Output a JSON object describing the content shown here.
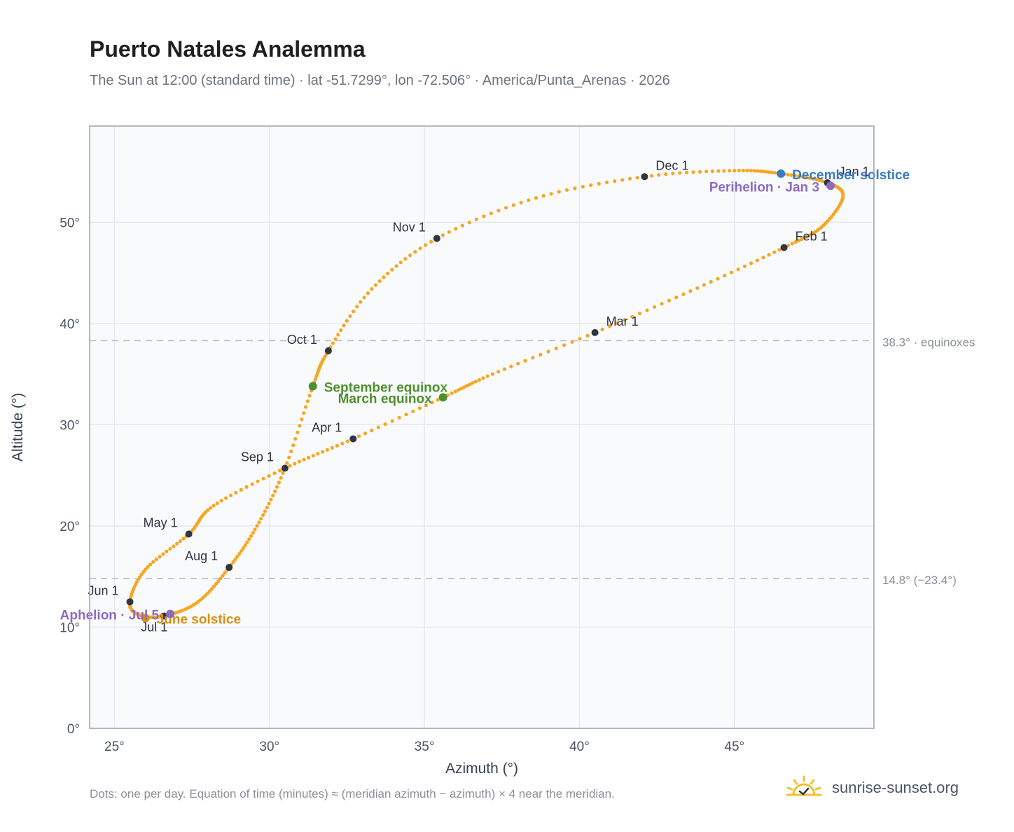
{
  "header": {
    "title": "Puerto Natales Analemma",
    "subtitle": "The Sun at 12:00 (standard time) · lat -51.7299°, lon -72.506° · America/Punta_Arenas · 2026"
  },
  "footer": {
    "note": "Dots: one per day. Equation of time (minutes) ≈ (meridian azimuth − azimuth) × 4 near the meridian.",
    "brand": "sunrise-sunset.org"
  },
  "colors": {
    "path": "#f5a623",
    "month_marker": "#2f3640",
    "december_solstice": "#3a7abf",
    "june_solstice": "#d9900f",
    "equinox": "#4f8f2f",
    "apsis": "#8e6bbf",
    "reference_line": "#b9c0ca",
    "plot_bg": "#f8fafc",
    "grid": "#e3e8ee"
  },
  "chart_data": {
    "type": "scatter",
    "xlabel": "Azimuth (°)",
    "ylabel": "Altitude (°)",
    "xlim": [
      24.2,
      49.5
    ],
    "ylim": [
      0,
      59.5
    ],
    "x_ticks": [
      25,
      30,
      35,
      40,
      45
    ],
    "x_tick_labels": [
      "25°",
      "30°",
      "35°",
      "40°",
      "45°"
    ],
    "y_ticks": [
      0,
      10,
      20,
      30,
      40,
      50
    ],
    "y_tick_labels": [
      "0°",
      "10°",
      "20°",
      "30°",
      "40°",
      "50°"
    ],
    "grid": true,
    "reference_lines": [
      {
        "y": 38.3,
        "label": "38.3° · equinoxes"
      },
      {
        "y": 14.8,
        "label": "14.8° (−23.4°)"
      }
    ],
    "month_markers": [
      {
        "label": "Jan 1",
        "x": 48.0,
        "y": 53.9,
        "label_side": "right"
      },
      {
        "label": "Feb 1",
        "x": 46.6,
        "y": 47.5,
        "label_side": "right"
      },
      {
        "label": "Mar 1",
        "x": 40.5,
        "y": 39.1,
        "label_side": "right"
      },
      {
        "label": "Apr 1",
        "x": 32.7,
        "y": 28.6,
        "label_side": "left"
      },
      {
        "label": "May 1",
        "x": 27.4,
        "y": 19.2,
        "label_side": "left"
      },
      {
        "label": "Jun 1",
        "x": 25.5,
        "y": 12.5,
        "label_side": "left"
      },
      {
        "label": "Jul 1",
        "x": 26.6,
        "y": 11.1,
        "label_side": "below"
      },
      {
        "label": "Aug 1",
        "x": 28.7,
        "y": 15.9,
        "label_side": "left"
      },
      {
        "label": "Sep 1",
        "x": 30.5,
        "y": 25.7,
        "label_side": "left"
      },
      {
        "label": "Oct 1",
        "x": 31.9,
        "y": 37.3,
        "label_side": "left"
      },
      {
        "label": "Nov 1",
        "x": 35.4,
        "y": 48.4,
        "label_side": "left"
      },
      {
        "label": "Dec 1",
        "x": 42.1,
        "y": 54.5,
        "label_side": "right"
      }
    ],
    "events": [
      {
        "label": "December solstice",
        "x": 46.5,
        "y": 54.8,
        "kind": "december_solstice",
        "label_side": "right"
      },
      {
        "label": "Perihelion · Jan 3",
        "x": 48.1,
        "y": 53.6,
        "kind": "apsis",
        "label_side": "left"
      },
      {
        "label": "March equinox",
        "x": 35.6,
        "y": 32.7,
        "kind": "equinox",
        "label_side": "left"
      },
      {
        "label": "September equinox",
        "x": 31.4,
        "y": 33.8,
        "kind": "equinox",
        "label_side": "right"
      },
      {
        "label": "June solstice",
        "x": 26.0,
        "y": 10.9,
        "kind": "june_solstice",
        "label_side": "right"
      },
      {
        "label": "Aphelion · Jul 5",
        "x": 26.8,
        "y": 11.3,
        "kind": "apsis",
        "label_side": "left"
      }
    ],
    "daily_path": [
      [
        48.0,
        53.9
      ],
      [
        48.5,
        52.5
      ],
      [
        47.8,
        49.5
      ],
      [
        46.6,
        47.5
      ],
      [
        43.8,
        43.5
      ],
      [
        40.5,
        39.1
      ],
      [
        37.2,
        35.0
      ],
      [
        35.6,
        32.7
      ],
      [
        32.7,
        28.6
      ],
      [
        30.5,
        25.7
      ],
      [
        28.2,
        22.0
      ],
      [
        27.4,
        19.2
      ],
      [
        26.0,
        15.7
      ],
      [
        25.5,
        12.5
      ],
      [
        25.8,
        11.2
      ],
      [
        26.6,
        11.1
      ],
      [
        27.7,
        12.5
      ],
      [
        28.7,
        15.9
      ],
      [
        29.6,
        20.0
      ],
      [
        30.5,
        25.7
      ],
      [
        31.4,
        33.8
      ],
      [
        31.9,
        37.3
      ],
      [
        33.3,
        43.4
      ],
      [
        35.4,
        48.4
      ],
      [
        38.6,
        52.4
      ],
      [
        42.1,
        54.5
      ],
      [
        45.0,
        55.1
      ],
      [
        46.5,
        54.8
      ],
      [
        48.0,
        53.9
      ]
    ]
  }
}
